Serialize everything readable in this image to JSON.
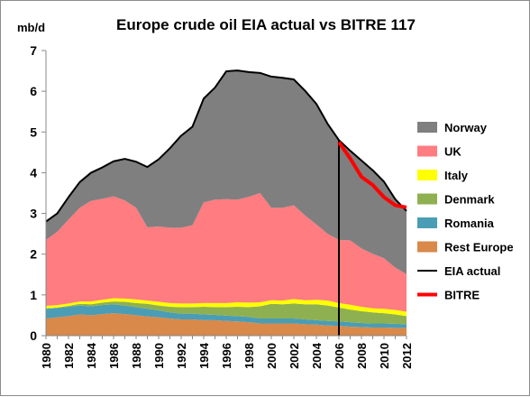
{
  "chart_data": {
    "type": "area",
    "title": "Europe crude oil EIA actual vs BITRE 117",
    "unit_label": "mb/d",
    "ylim": [
      0,
      7
    ],
    "y_ticks": [
      "0",
      "1",
      "2",
      "3",
      "4",
      "5",
      "6",
      "7"
    ],
    "x_ticks": [
      "1980",
      "1982",
      "1984",
      "1986",
      "1988",
      "1990",
      "1992",
      "1994",
      "1996",
      "1998",
      "2000",
      "2002",
      "2004",
      "2006",
      "2008",
      "2010",
      "2012"
    ],
    "grid": false,
    "legend_position": "right",
    "years": [
      1980,
      1981,
      1982,
      1983,
      1984,
      1985,
      1986,
      1987,
      1988,
      1989,
      1990,
      1991,
      1992,
      1993,
      1994,
      1995,
      1996,
      1997,
      1998,
      1999,
      2000,
      2001,
      2002,
      2003,
      2004,
      2005,
      2006,
      2007,
      2008,
      2009,
      2010,
      2011,
      2012
    ],
    "series": [
      {
        "name": "Rest Europe",
        "color": "#d9894a",
        "values": [
          0.42,
          0.45,
          0.48,
          0.52,
          0.5,
          0.53,
          0.55,
          0.53,
          0.5,
          0.47,
          0.45,
          0.42,
          0.4,
          0.4,
          0.38,
          0.38,
          0.36,
          0.35,
          0.33,
          0.3,
          0.3,
          0.3,
          0.3,
          0.28,
          0.27,
          0.25,
          0.24,
          0.22,
          0.21,
          0.2,
          0.2,
          0.19,
          0.19
        ]
      },
      {
        "name": "Romania",
        "color": "#4a9db5",
        "values": [
          0.24,
          0.23,
          0.23,
          0.22,
          0.22,
          0.22,
          0.22,
          0.21,
          0.2,
          0.19,
          0.17,
          0.15,
          0.14,
          0.14,
          0.14,
          0.13,
          0.13,
          0.13,
          0.13,
          0.12,
          0.12,
          0.12,
          0.12,
          0.12,
          0.11,
          0.11,
          0.11,
          0.11,
          0.1,
          0.1,
          0.1,
          0.1,
          0.09
        ]
      },
      {
        "name": "Denmark",
        "color": "#8fb050",
        "values": [
          0.01,
          0.01,
          0.02,
          0.04,
          0.05,
          0.06,
          0.07,
          0.09,
          0.1,
          0.12,
          0.12,
          0.14,
          0.16,
          0.16,
          0.19,
          0.19,
          0.21,
          0.23,
          0.24,
          0.3,
          0.36,
          0.35,
          0.37,
          0.37,
          0.39,
          0.38,
          0.34,
          0.31,
          0.29,
          0.27,
          0.25,
          0.23,
          0.2
        ]
      },
      {
        "name": "Italy",
        "color": "#ffff00",
        "values": [
          0.06,
          0.06,
          0.06,
          0.06,
          0.07,
          0.07,
          0.08,
          0.08,
          0.09,
          0.08,
          0.09,
          0.09,
          0.09,
          0.09,
          0.09,
          0.1,
          0.1,
          0.11,
          0.11,
          0.1,
          0.09,
          0.09,
          0.11,
          0.1,
          0.11,
          0.12,
          0.11,
          0.12,
          0.11,
          0.1,
          0.11,
          0.11,
          0.11
        ]
      },
      {
        "name": "UK",
        "color": "#ff7c80",
        "values": [
          1.62,
          1.8,
          2.06,
          2.3,
          2.47,
          2.48,
          2.5,
          2.41,
          2.25,
          1.8,
          1.85,
          1.85,
          1.86,
          1.92,
          2.47,
          2.54,
          2.55,
          2.52,
          2.6,
          2.68,
          2.27,
          2.28,
          2.3,
          2.08,
          1.85,
          1.64,
          1.55,
          1.58,
          1.43,
          1.34,
          1.24,
          1.04,
          0.92
        ]
      },
      {
        "name": "Norway",
        "color": "#7f7f7f",
        "values": [
          0.45,
          0.45,
          0.55,
          0.63,
          0.69,
          0.77,
          0.86,
          1.02,
          1.13,
          1.48,
          1.65,
          1.95,
          2.26,
          2.42,
          2.55,
          2.75,
          3.14,
          3.17,
          3.06,
          2.95,
          3.22,
          3.19,
          3.09,
          3.06,
          2.96,
          2.7,
          2.45,
          2.2,
          2.16,
          2.05,
          1.88,
          1.68,
          1.55
        ]
      }
    ],
    "lines": [
      {
        "name": "EIA actual",
        "color": "#000000",
        "x": [
          1980,
          1981,
          1982,
          1983,
          1984,
          1985,
          1986,
          1987,
          1988,
          1989,
          1990,
          1991,
          1992,
          1993,
          1994,
          1995,
          1996,
          1997,
          1998,
          1999,
          2000,
          2001,
          2002,
          2003,
          2004,
          2005,
          2006,
          2007,
          2008,
          2009,
          2010,
          2011,
          2012
        ],
        "y": [
          2.8,
          3.0,
          3.4,
          3.77,
          4.0,
          4.13,
          4.28,
          4.34,
          4.27,
          4.14,
          4.33,
          4.6,
          4.91,
          5.13,
          5.82,
          6.09,
          6.49,
          6.51,
          6.47,
          6.45,
          6.36,
          6.33,
          6.29,
          6.01,
          5.69,
          5.2,
          4.8,
          4.54,
          4.3,
          4.06,
          3.78,
          3.35,
          3.06
        ]
      },
      {
        "name": "BITRE",
        "color": "#ff0000",
        "x": [
          2006,
          2007,
          2008,
          2009,
          2010,
          2011,
          2012
        ],
        "y": [
          4.75,
          4.35,
          3.9,
          3.7,
          3.4,
          3.2,
          3.15
        ]
      }
    ],
    "vertical_marker_year": 2006,
    "legend": [
      {
        "label": "Norway",
        "kind": "area",
        "color": "#7f7f7f"
      },
      {
        "label": "UK",
        "kind": "area",
        "color": "#ff7c80"
      },
      {
        "label": "Italy",
        "kind": "area",
        "color": "#ffff00"
      },
      {
        "label": "Denmark",
        "kind": "area",
        "color": "#8fb050"
      },
      {
        "label": "Romania",
        "kind": "area",
        "color": "#4a9db5"
      },
      {
        "label": "Rest Europe",
        "kind": "area",
        "color": "#d9894a"
      },
      {
        "label": "EIA actual",
        "kind": "line",
        "color": "#000000"
      },
      {
        "label": "BITRE",
        "kind": "line",
        "color": "#ff0000"
      }
    ]
  }
}
